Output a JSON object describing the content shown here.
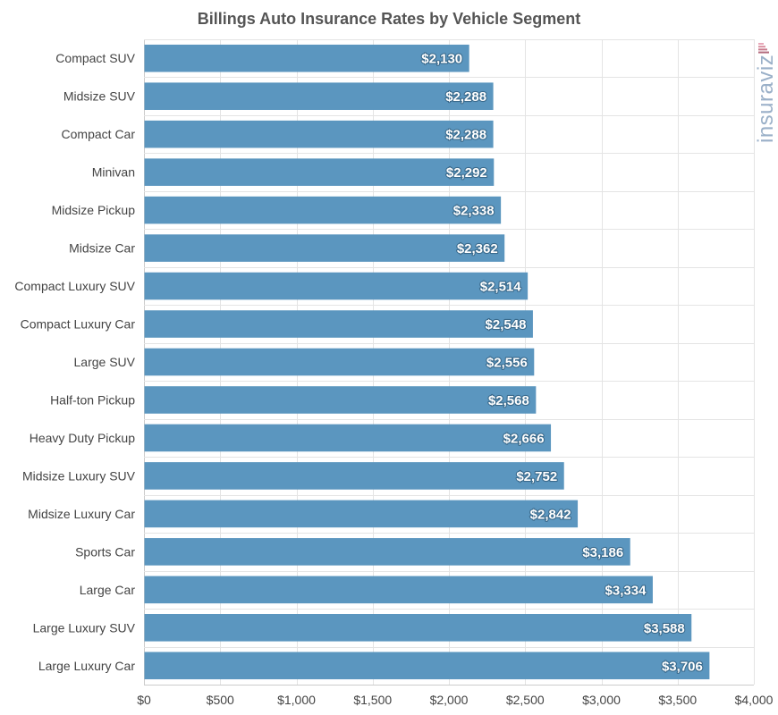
{
  "chart_data": {
    "type": "bar",
    "orientation": "horizontal",
    "title": "Billings Auto Insurance Rates by Vehicle Segment",
    "xlabel": "",
    "ylabel": "",
    "categories": [
      "Compact SUV",
      "Midsize SUV",
      "Compact Car",
      "Minivan",
      "Midsize Pickup",
      "Midsize Car",
      "Compact Luxury SUV",
      "Compact Luxury Car",
      "Large SUV",
      "Half-ton Pickup",
      "Heavy Duty Pickup",
      "Midsize Luxury SUV",
      "Midsize Luxury Car",
      "Sports Car",
      "Large Car",
      "Large Luxury SUV",
      "Large Luxury Car"
    ],
    "values": [
      2130,
      2288,
      2288,
      2292,
      2338,
      2362,
      2514,
      2548,
      2556,
      2568,
      2666,
      2752,
      2842,
      3186,
      3334,
      3588,
      3706
    ],
    "value_labels": [
      "$2,130",
      "$2,288",
      "$2,288",
      "$2,292",
      "$2,338",
      "$2,362",
      "$2,514",
      "$2,548",
      "$2,556",
      "$2,568",
      "$2,666",
      "$2,752",
      "$2,842",
      "$3,186",
      "$3,334",
      "$3,588",
      "$3,706"
    ],
    "xlim": [
      0,
      4000
    ],
    "x_ticks": [
      0,
      500,
      1000,
      1500,
      2000,
      2500,
      3000,
      3500,
      4000
    ],
    "x_tick_labels": [
      "$0",
      "$500",
      "$1,000",
      "$1,500",
      "$2,000",
      "$2,500",
      "$3,000",
      "$3,500",
      "$4,000"
    ],
    "grid": true,
    "legend": "none",
    "bar_color": "#5b96bf",
    "bar_label_color": "#ffffff"
  },
  "watermark": {
    "text": "insuraviz",
    "icon": "bar-stack-icon",
    "color": "#9ab0c8",
    "accent_colors": [
      "#e8a7b8",
      "#d9909f",
      "#c97c8e",
      "#b36a7c"
    ]
  }
}
